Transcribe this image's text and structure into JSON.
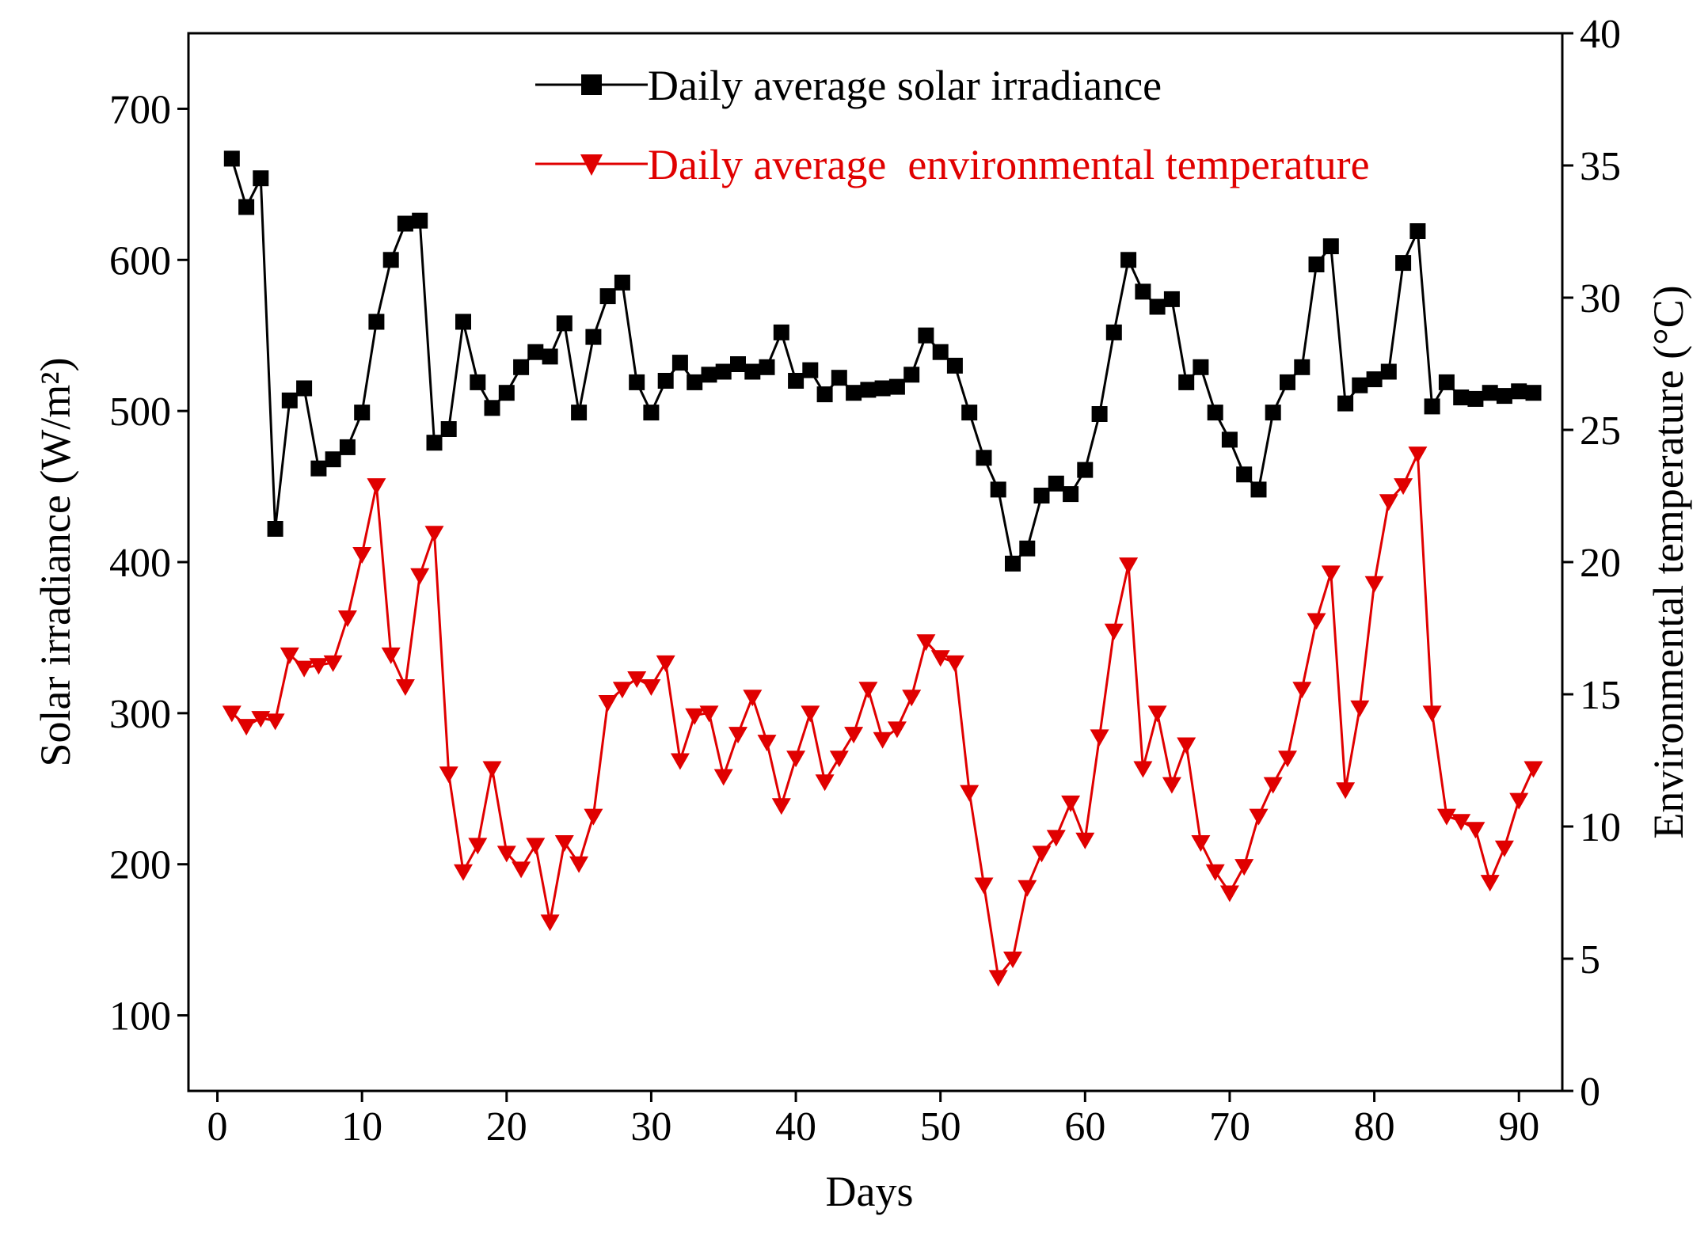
{
  "chart_data": {
    "type": "line",
    "xlabel": "Days",
    "ylabel_left": "Solar irradiance (W/m²)",
    "ylabel_right": "Environmental temperature (°C)",
    "xlim": [
      -2,
      93
    ],
    "ylim_left": [
      50,
      750
    ],
    "ylim_right": [
      0,
      40
    ],
    "xticks": [
      0,
      10,
      20,
      30,
      40,
      50,
      60,
      70,
      80,
      90
    ],
    "yticks_left": [
      100,
      200,
      300,
      400,
      500,
      600,
      700
    ],
    "yticks_right": [
      0,
      5,
      10,
      15,
      20,
      25,
      30,
      35,
      40
    ],
    "grid": false,
    "legend_position": "top-center",
    "series": [
      {
        "name": "Daily average solar irradiance",
        "axis": "left",
        "color": "#000000",
        "marker": "square",
        "x": [
          1,
          2,
          3,
          4,
          5,
          6,
          7,
          8,
          9,
          10,
          11,
          12,
          13,
          14,
          15,
          16,
          17,
          18,
          19,
          20,
          21,
          22,
          23,
          24,
          25,
          26,
          27,
          28,
          29,
          30,
          31,
          32,
          33,
          34,
          35,
          36,
          37,
          38,
          39,
          40,
          41,
          42,
          43,
          44,
          45,
          46,
          47,
          48,
          49,
          50,
          51,
          52,
          53,
          54,
          55,
          56,
          57,
          58,
          59,
          60,
          61,
          62,
          63,
          64,
          65,
          66,
          67,
          68,
          69,
          70,
          71,
          72,
          73,
          74,
          75,
          76,
          77,
          78,
          79,
          80,
          81,
          82,
          83,
          84,
          85,
          86,
          87,
          88,
          89,
          90,
          91
        ],
        "values": [
          667,
          635,
          654,
          422,
          507,
          515,
          462,
          468,
          476,
          499,
          559,
          600,
          624,
          626,
          479,
          488,
          559,
          519,
          502,
          512,
          529,
          539,
          536,
          558,
          499,
          549,
          576,
          585,
          519,
          499,
          520,
          532,
          519,
          524,
          526,
          531,
          526,
          529,
          552,
          520,
          527,
          511,
          522,
          512,
          514,
          515,
          516,
          524,
          550,
          539,
          530,
          499,
          469,
          448,
          399,
          409,
          444,
          452,
          445,
          461,
          498,
          552,
          600,
          579,
          569,
          574,
          519,
          529,
          499,
          481,
          458,
          448,
          499,
          519,
          529,
          597,
          609,
          505,
          517,
          521,
          526,
          598,
          619,
          503,
          519,
          509,
          508,
          512,
          510,
          513,
          512
        ]
      },
      {
        "name": "Daily average  environmental temperature",
        "axis": "right",
        "color": "#e00000",
        "marker": "triangle-down",
        "x": [
          1,
          2,
          3,
          4,
          5,
          6,
          7,
          8,
          9,
          10,
          11,
          12,
          13,
          14,
          15,
          16,
          17,
          18,
          19,
          20,
          21,
          22,
          23,
          24,
          25,
          26,
          27,
          28,
          29,
          30,
          31,
          32,
          33,
          34,
          35,
          36,
          37,
          38,
          39,
          40,
          41,
          42,
          43,
          44,
          45,
          46,
          47,
          48,
          49,
          50,
          51,
          52,
          53,
          54,
          55,
          56,
          57,
          58,
          59,
          60,
          61,
          62,
          63,
          64,
          65,
          66,
          67,
          68,
          69,
          70,
          71,
          72,
          73,
          74,
          75,
          76,
          77,
          78,
          79,
          80,
          81,
          82,
          83,
          84,
          85,
          86,
          87,
          88,
          89,
          90,
          91
        ],
        "values": [
          14.3,
          13.8,
          14.1,
          14.0,
          16.5,
          16.0,
          16.1,
          16.2,
          17.9,
          20.3,
          22.9,
          16.5,
          15.3,
          19.5,
          21.1,
          12.0,
          8.3,
          9.3,
          12.2,
          9.0,
          8.4,
          9.3,
          6.4,
          9.4,
          8.6,
          10.4,
          14.7,
          15.2,
          15.6,
          15.3,
          16.2,
          12.5,
          14.2,
          14.3,
          11.9,
          13.5,
          14.9,
          13.2,
          10.8,
          12.6,
          14.3,
          11.7,
          12.6,
          13.5,
          15.2,
          13.3,
          13.7,
          14.9,
          17.0,
          16.4,
          16.2,
          11.3,
          7.8,
          4.3,
          5.0,
          7.7,
          9.0,
          9.6,
          10.9,
          9.5,
          13.4,
          17.4,
          19.9,
          12.2,
          14.3,
          11.6,
          13.1,
          9.4,
          8.3,
          7.5,
          8.5,
          10.4,
          11.6,
          12.6,
          15.2,
          17.8,
          19.6,
          11.4,
          14.5,
          19.2,
          22.3,
          22.9,
          24.1,
          14.3,
          10.4,
          10.2,
          9.9,
          7.9,
          9.2,
          11.0,
          12.2
        ]
      }
    ]
  }
}
